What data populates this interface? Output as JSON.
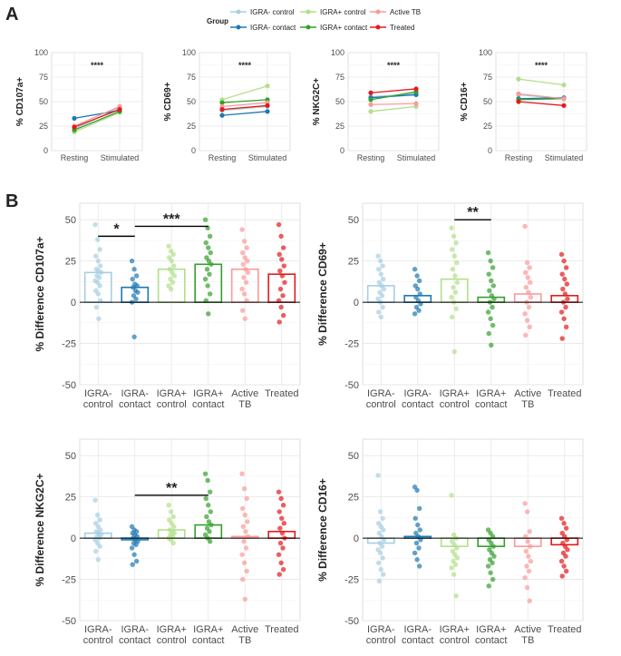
{
  "panel_labels": {
    "a": "A",
    "b": "B"
  },
  "legend": {
    "title": "Group",
    "entries": [
      {
        "label": "IGRA- control",
        "color": "#a6cee3"
      },
      {
        "label": "IGRA- contact",
        "color": "#1f78b4"
      },
      {
        "label": "IGRA+ control",
        "color": "#b2df8a"
      },
      {
        "label": "IGRA+ contact",
        "color": "#33a02c"
      },
      {
        "label": "Active TB",
        "color": "#fb9a99"
      },
      {
        "label": "Treated",
        "color": "#e31a1c"
      }
    ]
  },
  "chart_data": [
    {
      "type": "line",
      "panel": "A",
      "ylabel": "% CD107a+",
      "x": [
        "Resting",
        "Stimulated"
      ],
      "ylim": [
        0,
        100
      ],
      "yticks": [
        0,
        25,
        50,
        75,
        100
      ],
      "annotation": "****",
      "series": [
        {
          "name": "IGRA- control",
          "values": [
            22,
            44
          ]
        },
        {
          "name": "IGRA- contact",
          "values": [
            33,
            41
          ]
        },
        {
          "name": "IGRA+ control",
          "values": [
            19,
            39
          ]
        },
        {
          "name": "IGRA+ contact",
          "values": [
            21,
            40
          ]
        },
        {
          "name": "Active TB",
          "values": [
            25,
            45
          ]
        },
        {
          "name": "Treated",
          "values": [
            24,
            42
          ]
        }
      ]
    },
    {
      "type": "line",
      "panel": "A",
      "ylabel": "% CD69+",
      "x": [
        "Resting",
        "Stimulated"
      ],
      "ylim": [
        0,
        100
      ],
      "yticks": [
        0,
        25,
        50,
        75,
        100
      ],
      "annotation": "****",
      "series": [
        {
          "name": "IGRA- control",
          "values": [
            41,
            45
          ]
        },
        {
          "name": "IGRA- contact",
          "values": [
            36,
            40
          ]
        },
        {
          "name": "IGRA+ control",
          "values": [
            52,
            66
          ]
        },
        {
          "name": "IGRA+ contact",
          "values": [
            49,
            52
          ]
        },
        {
          "name": "Active TB",
          "values": [
            45,
            49
          ]
        },
        {
          "name": "Treated",
          "values": [
            42,
            46
          ]
        }
      ]
    },
    {
      "type": "line",
      "panel": "A",
      "ylabel": "% NKG2C+",
      "x": [
        "Resting",
        "Stimulated"
      ],
      "ylim": [
        0,
        100
      ],
      "yticks": [
        0,
        25,
        50,
        75,
        100
      ],
      "annotation": "****",
      "series": [
        {
          "name": "IGRA- control",
          "values": [
            55,
            58
          ]
        },
        {
          "name": "IGRA- contact",
          "values": [
            54,
            57
          ]
        },
        {
          "name": "IGRA+ control",
          "values": [
            40,
            45
          ]
        },
        {
          "name": "IGRA+ contact",
          "values": [
            52,
            60
          ]
        },
        {
          "name": "Active TB",
          "values": [
            47,
            48
          ]
        },
        {
          "name": "Treated",
          "values": [
            59,
            63
          ]
        }
      ]
    },
    {
      "type": "line",
      "panel": "A",
      "ylabel": "% CD16+",
      "x": [
        "Resting",
        "Stimulated"
      ],
      "ylim": [
        0,
        100
      ],
      "yticks": [
        0,
        25,
        50,
        75,
        100
      ],
      "annotation": "****",
      "series": [
        {
          "name": "IGRA- control",
          "values": [
            57,
            53
          ]
        },
        {
          "name": "IGRA- contact",
          "values": [
            53,
            54
          ]
        },
        {
          "name": "IGRA+ control",
          "values": [
            73,
            67
          ]
        },
        {
          "name": "IGRA+ contact",
          "values": [
            52,
            53
          ]
        },
        {
          "name": "Active TB",
          "values": [
            58,
            53
          ]
        },
        {
          "name": "Treated",
          "values": [
            50,
            46
          ]
        }
      ]
    },
    {
      "type": "bar",
      "panel": "B",
      "ylabel": "% Difference  CD107a+",
      "categories": [
        "IGRA-\ncontrol",
        "IGRA-\ncontact",
        "IGRA+\ncontrol",
        "IGRA+\ncontact",
        "Active\nTB",
        "Treated"
      ],
      "ylim": [
        -50,
        60
      ],
      "yticks": [
        -50,
        -25,
        0,
        25,
        50
      ],
      "values": [
        18,
        9,
        20,
        23,
        20,
        17
      ],
      "points": [
        [
          47,
          38,
          32,
          28,
          25,
          22,
          20,
          19,
          18,
          16,
          15,
          13,
          12,
          10,
          7,
          5,
          1,
          -3,
          -10
        ],
        [
          25,
          20,
          16,
          14,
          11,
          10,
          9,
          7,
          6,
          4,
          2,
          0,
          -21
        ],
        [
          34,
          31,
          29,
          27,
          25,
          22,
          20,
          18,
          16,
          14,
          12,
          10,
          8
        ],
        [
          50,
          45,
          40,
          36,
          33,
          30,
          27,
          25,
          23,
          20,
          17,
          14,
          10,
          5,
          1,
          -7
        ],
        [
          44,
          37,
          33,
          30,
          27,
          25,
          23,
          20,
          18,
          15,
          12,
          8,
          5,
          1,
          -5,
          -10
        ],
        [
          47,
          40,
          33,
          29,
          26,
          22,
          19,
          16,
          12,
          8,
          4,
          1,
          -3,
          -8,
          -12
        ]
      ],
      "significance": [
        {
          "from": 0,
          "to": 1,
          "label": "*",
          "y": 40
        },
        {
          "from": 1,
          "to": 3,
          "label": "***",
          "y": 46
        }
      ]
    },
    {
      "type": "bar",
      "panel": "B",
      "ylabel": "% Difference  CD69+",
      "categories": [
        "IGRA-\ncontrol",
        "IGRA-\ncontact",
        "IGRA+\ncontrol",
        "IGRA+\ncontact",
        "Active\nTB",
        "Treated"
      ],
      "ylim": [
        -50,
        60
      ],
      "yticks": [
        -50,
        -25,
        0,
        25,
        50
      ],
      "values": [
        10,
        4,
        14,
        3,
        5,
        4
      ],
      "points": [
        [
          28,
          25,
          22,
          20,
          17,
          14,
          12,
          10,
          8,
          6,
          4,
          2,
          0,
          -3,
          -6,
          -9
        ],
        [
          20,
          16,
          13,
          10,
          8,
          5,
          3,
          1,
          -1,
          -3,
          -5,
          -7
        ],
        [
          45,
          40,
          36,
          32,
          28,
          24,
          20,
          16,
          12,
          9,
          6,
          3,
          0,
          -4,
          -9,
          -30
        ],
        [
          30,
          25,
          21,
          17,
          13,
          10,
          7,
          4,
          2,
          0,
          -3,
          -6,
          -10,
          -14,
          -19,
          -26
        ],
        [
          46,
          24,
          21,
          18,
          15,
          12,
          9,
          6,
          3,
          0,
          -3,
          -7,
          -11,
          -15,
          -20
        ],
        [
          29,
          25,
          21,
          17,
          14,
          11,
          8,
          5,
          2,
          0,
          -3,
          -6,
          -10,
          -15,
          -22
        ]
      ],
      "significance": [
        {
          "from": 2,
          "to": 3,
          "label": "**",
          "y": 50
        }
      ]
    },
    {
      "type": "bar",
      "panel": "B",
      "ylabel": "% Difference  NKG2C+",
      "categories": [
        "IGRA-\ncontrol",
        "IGRA-\ncontact",
        "IGRA+\ncontrol",
        "IGRA+\ncontact",
        "Active\nTB",
        "Treated"
      ],
      "ylim": [
        -50,
        60
      ],
      "yticks": [
        -50,
        -25,
        0,
        25,
        50
      ],
      "values": [
        3,
        -1,
        5,
        8,
        1,
        4
      ],
      "points": [
        [
          23,
          14,
          11,
          9,
          7,
          5,
          4,
          3,
          2,
          1,
          0,
          -1,
          -3,
          -5,
          -8,
          -13
        ],
        [
          7,
          5,
          4,
          3,
          2,
          1,
          0,
          -1,
          -2,
          -3,
          -4,
          -6,
          -10,
          -14,
          -16
        ],
        [
          20,
          16,
          13,
          11,
          9,
          7,
          5,
          4,
          3,
          2,
          1,
          0,
          -1,
          -3
        ],
        [
          39,
          35,
          28,
          24,
          20,
          16,
          13,
          10,
          8,
          6,
          4,
          2,
          0,
          -2
        ],
        [
          39,
          30,
          24,
          18,
          14,
          10,
          7,
          4,
          1,
          -2,
          -6,
          -10,
          -15,
          -20,
          -25,
          -37
        ],
        [
          28,
          24,
          20,
          16,
          12,
          9,
          6,
          3,
          0,
          -3,
          -6,
          -10,
          -15,
          -19,
          -22
        ]
      ],
      "significance": [
        {
          "from": 1,
          "to": 3,
          "label": "**",
          "y": 26
        }
      ]
    },
    {
      "type": "bar",
      "panel": "B",
      "ylabel": "% Difference  CD16+",
      "categories": [
        "IGRA-\ncontrol",
        "IGRA-\ncontact",
        "IGRA+\ncontrol",
        "IGRA+\ncontact",
        "Active\nTB",
        "Treated"
      ],
      "ylim": [
        -50,
        60
      ],
      "yticks": [
        -50,
        -25,
        0,
        25,
        50
      ],
      "values": [
        -3,
        1,
        -5,
        -5,
        -5,
        -4
      ],
      "points": [
        [
          38,
          16,
          12,
          9,
          7,
          5,
          3,
          1,
          -1,
          -3,
          -5,
          -7,
          -9,
          -12,
          -15,
          -19,
          -22,
          -26
        ],
        [
          31,
          29,
          18,
          12,
          8,
          5,
          3,
          1,
          -1,
          -3,
          -6,
          -9,
          -13,
          -17
        ],
        [
          26,
          2,
          0,
          -2,
          -4,
          -6,
          -8,
          -10,
          -12,
          -14,
          -16,
          -18,
          -22,
          -35
        ],
        [
          5,
          3,
          1,
          -1,
          -3,
          -5,
          -7,
          -9,
          -11,
          -13,
          -15,
          -17,
          -21,
          -25,
          -29
        ],
        [
          21,
          16,
          4,
          1,
          -2,
          -5,
          -8,
          -11,
          -14,
          -17,
          -20,
          -24,
          -30,
          -38
        ],
        [
          12,
          9,
          6,
          3,
          1,
          -1,
          -3,
          -5,
          -7,
          -9,
          -11,
          -14,
          -17,
          -20,
          -23
        ]
      ],
      "significance": []
    }
  ]
}
